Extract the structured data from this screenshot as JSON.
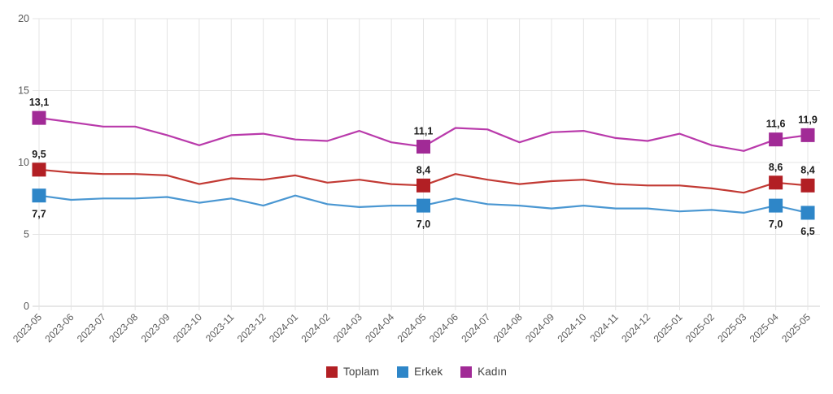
{
  "chart_data": {
    "type": "line",
    "title": "",
    "xlabel": "",
    "ylabel": "",
    "ylim": [
      0,
      20
    ],
    "yticks": [
      0,
      5,
      10,
      15,
      20
    ],
    "grid": true,
    "legend_position": "bottom",
    "decimal_separator": ",",
    "x": [
      "2023-05",
      "2023-06",
      "2023-07",
      "2023-08",
      "2023-09",
      "2023-10",
      "2023-11",
      "2023-12",
      "2024-01",
      "2024-02",
      "2024-03",
      "2024-04",
      "2024-05",
      "2024-06",
      "2024-07",
      "2024-08",
      "2024-09",
      "2024-10",
      "2024-11",
      "2024-12",
      "2025-01",
      "2025-02",
      "2025-03",
      "2025-04",
      "2025-05"
    ],
    "labeled_indices": [
      0,
      12,
      23,
      24
    ],
    "series": [
      {
        "name": "Toplam",
        "color": "#b21f24",
        "line_color": "#c23a34",
        "label_side": "above",
        "values": [
          9.5,
          9.3,
          9.2,
          9.2,
          9.1,
          8.5,
          8.9,
          8.8,
          9.1,
          8.6,
          8.8,
          8.5,
          8.4,
          9.2,
          8.8,
          8.5,
          8.7,
          8.8,
          8.5,
          8.4,
          8.4,
          8.2,
          7.9,
          8.6,
          8.4
        ],
        "shown_labels": [
          "9,5",
          "8,4",
          "8,6",
          "8,4"
        ]
      },
      {
        "name": "Erkek",
        "color": "#2e86c8",
        "line_color": "#4a97d2",
        "label_side": "below",
        "values": [
          7.7,
          7.4,
          7.5,
          7.5,
          7.6,
          7.2,
          7.5,
          7.0,
          7.7,
          7.1,
          6.9,
          7.0,
          7.0,
          7.5,
          7.1,
          7.0,
          6.8,
          7.0,
          6.8,
          6.8,
          6.6,
          6.7,
          6.5,
          7.0,
          6.5
        ],
        "shown_labels": [
          "7,7",
          "7,0",
          "7,0",
          "6,5"
        ]
      },
      {
        "name": "Kadın",
        "color": "#a12a96",
        "line_color": "#b93aab",
        "label_side": "above",
        "values": [
          13.1,
          12.8,
          12.5,
          12.5,
          11.9,
          11.2,
          11.9,
          12.0,
          11.6,
          11.5,
          12.2,
          11.4,
          11.1,
          12.4,
          12.3,
          11.4,
          12.1,
          12.2,
          11.7,
          11.5,
          12.0,
          11.2,
          10.8,
          11.6,
          11.9
        ],
        "shown_labels": [
          "13,1",
          "11,1",
          "11,6",
          "11,9"
        ]
      }
    ],
    "colors": {
      "gridline": "#e4e4e4",
      "zero_line": "#cfcfcf",
      "axis_text": "#595959",
      "value_label_text": "#1a1a1a"
    }
  },
  "legend": {
    "items": [
      {
        "label": "Toplam"
      },
      {
        "label": "Erkek"
      },
      {
        "label": "Kadın"
      }
    ]
  }
}
